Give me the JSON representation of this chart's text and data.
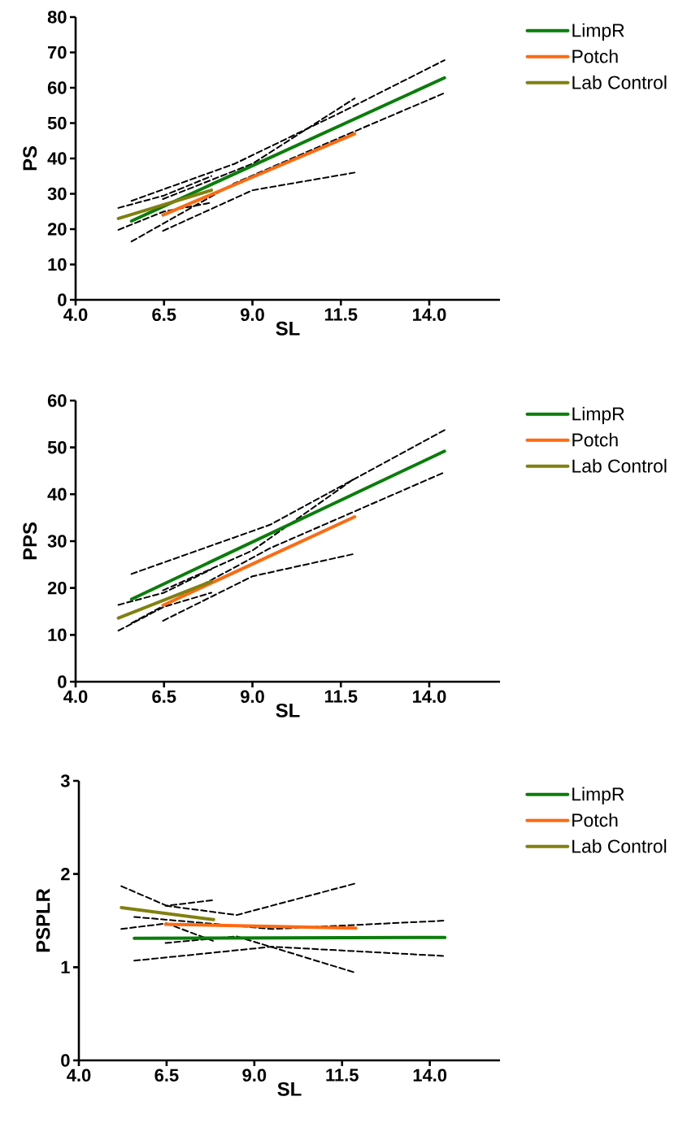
{
  "chart_data": [
    {
      "type": "line",
      "xlabel": "SL",
      "ylabel": "PS",
      "xlim": [
        4,
        16
      ],
      "xticks": [
        {
          "value": 4,
          "label": "4.0"
        },
        {
          "value": 6.5,
          "label": "6.5"
        },
        {
          "value": 9,
          "label": "9.0"
        },
        {
          "value": 11.5,
          "label": "11.5"
        },
        {
          "value": 14,
          "label": "14.0"
        }
      ],
      "ylim": [
        0,
        80
      ],
      "yticks": [
        0,
        10,
        20,
        30,
        40,
        50,
        60,
        70,
        80
      ],
      "legend": "top right",
      "line_style": "solid",
      "series": [
        {
          "color": "#000000",
          "line_style": "dashed",
          "x": [
            5.58,
            8.5,
            11.5,
            14.43
          ],
          "values": [
            16.5,
            33,
            46,
            58.5
          ]
        },
        {
          "color": "#000000",
          "line_style": "dashed",
          "x": [
            5.58,
            8.5,
            11.5,
            14.43
          ],
          "values": [
            28,
            38.5,
            53,
            67.8
          ]
        },
        {
          "color": "#000000",
          "line_style": "dashed",
          "x": [
            6.47,
            9.0,
            11.89
          ],
          "values": [
            19.5,
            31,
            36
          ]
        },
        {
          "color": "#000000",
          "line_style": "dashed",
          "x": [
            6.47,
            9.0,
            11.89
          ],
          "values": [
            28.5,
            38.5,
            57
          ]
        },
        {
          "color": "#000000",
          "line_style": "dashed",
          "x": [
            5.21,
            6.5,
            7.84
          ],
          "values": [
            19.8,
            25,
            27.5
          ]
        },
        {
          "color": "#000000",
          "line_style": "dashed",
          "x": [
            5.21,
            6.5,
            7.84
          ],
          "values": [
            26,
            29.5,
            35
          ]
        },
        {
          "name": "LimpR",
          "color": "#0a7d0a",
          "x": [
            5.58,
            14.43
          ],
          "values": [
            22.3,
            62.8
          ]
        },
        {
          "name": "Potch",
          "color": "#ff6a10",
          "x": [
            6.47,
            11.89
          ],
          "values": [
            24,
            47
          ]
        },
        {
          "name": "Lab Control",
          "color": "#808010",
          "x": [
            5.21,
            7.84
          ],
          "values": [
            23,
            31
          ]
        }
      ]
    },
    {
      "type": "line",
      "xlabel": "SL",
      "ylabel": "PPS",
      "xlim": [
        4,
        16
      ],
      "xticks": [
        {
          "value": 4,
          "label": "4.0"
        },
        {
          "value": 6.5,
          "label": "6.5"
        },
        {
          "value": 9,
          "label": "9.0"
        },
        {
          "value": 11.5,
          "label": "11.5"
        },
        {
          "value": 14,
          "label": "14.0"
        }
      ],
      "ylim": [
        0,
        60
      ],
      "yticks": [
        0,
        10,
        20,
        30,
        40,
        50,
        60
      ],
      "legend": "top right",
      "line_style": "solid",
      "series": [
        {
          "color": "#000000",
          "line_style": "dashed",
          "x": [
            5.58,
            9.5,
            14.43
          ],
          "values": [
            12.5,
            28.5,
            44.7
          ]
        },
        {
          "color": "#000000",
          "line_style": "dashed",
          "x": [
            5.58,
            9.5,
            14.43
          ],
          "values": [
            23,
            33.5,
            53.7
          ]
        },
        {
          "color": "#000000",
          "line_style": "dashed",
          "x": [
            6.47,
            9.0,
            11.89
          ],
          "values": [
            13,
            22.5,
            27.3
          ]
        },
        {
          "color": "#000000",
          "line_style": "dashed",
          "x": [
            6.47,
            9.0,
            11.89
          ],
          "values": [
            19.5,
            28,
            43.4
          ]
        },
        {
          "color": "#000000",
          "line_style": "dashed",
          "x": [
            5.21,
            6.5,
            7.84
          ],
          "values": [
            10.9,
            16,
            19
          ]
        },
        {
          "color": "#000000",
          "line_style": "dashed",
          "x": [
            5.21,
            6.5,
            7.84
          ],
          "values": [
            16.4,
            19,
            24
          ]
        },
        {
          "name": "LimpR",
          "color": "#0a7d0a",
          "x": [
            5.58,
            14.43
          ],
          "values": [
            17.6,
            49.2
          ]
        },
        {
          "name": "Potch",
          "color": "#ff6a10",
          "x": [
            6.47,
            11.89
          ],
          "values": [
            16.3,
            35.2
          ]
        },
        {
          "name": "Lab Control",
          "color": "#808010",
          "x": [
            5.21,
            7.84
          ],
          "values": [
            13.6,
            21.4
          ]
        }
      ]
    },
    {
      "type": "line",
      "xlabel": "SL",
      "ylabel": "PSPLR",
      "xlim": [
        4,
        16
      ],
      "xticks": [
        {
          "value": 4,
          "label": "4.0"
        },
        {
          "value": 6.5,
          "label": "6.5"
        },
        {
          "value": 9,
          "label": "9.0"
        },
        {
          "value": 11.5,
          "label": "11.5"
        },
        {
          "value": 14,
          "label": "14.0"
        }
      ],
      "ylim": [
        0,
        3
      ],
      "yticks": [
        0,
        1,
        2,
        3
      ],
      "legend": "top right",
      "line_style": "solid",
      "series": [
        {
          "color": "#000000",
          "line_style": "dashed",
          "x": [
            5.58,
            9.5,
            14.43
          ],
          "values": [
            1.07,
            1.22,
            1.12
          ]
        },
        {
          "color": "#000000",
          "line_style": "dashed",
          "x": [
            5.58,
            9.5,
            14.43
          ],
          "values": [
            1.54,
            1.41,
            1.5
          ]
        },
        {
          "color": "#000000",
          "line_style": "dashed",
          "x": [
            6.47,
            8.5,
            11.89
          ],
          "values": [
            1.26,
            1.33,
            0.94
          ]
        },
        {
          "color": "#000000",
          "line_style": "dashed",
          "x": [
            6.47,
            8.5,
            11.89
          ],
          "values": [
            1.66,
            1.56,
            1.9
          ]
        },
        {
          "color": "#000000",
          "line_style": "dashed",
          "x": [
            5.21,
            6.5,
            7.84
          ],
          "values": [
            1.41,
            1.47,
            1.28
          ]
        },
        {
          "color": "#000000",
          "line_style": "dashed",
          "x": [
            5.21,
            6.5,
            7.84
          ],
          "values": [
            1.87,
            1.66,
            1.72
          ]
        },
        {
          "name": "LimpR",
          "color": "#0a7d0a",
          "x": [
            5.58,
            14.43
          ],
          "values": [
            1.31,
            1.32
          ]
        },
        {
          "name": "Potch",
          "color": "#ff6a10",
          "x": [
            6.47,
            11.89
          ],
          "values": [
            1.46,
            1.42
          ]
        },
        {
          "name": "Lab Control",
          "color": "#808010",
          "x": [
            5.21,
            7.84
          ],
          "values": [
            1.64,
            1.51
          ]
        }
      ]
    }
  ]
}
